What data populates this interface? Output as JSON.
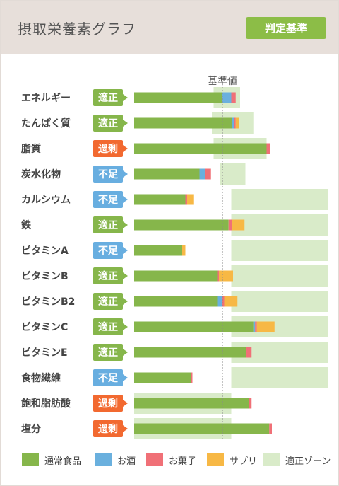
{
  "header": {
    "title": "摂取栄養素グラフ",
    "judge_button": "判定基準"
  },
  "chart_data": {
    "type": "bar",
    "reference_label": "基準値",
    "reference_value": 100,
    "x_range": [
      0,
      220
    ],
    "legend": [
      "通常食品",
      "お酒",
      "お菓子",
      "サプリ",
      "適正ゾーン"
    ],
    "colors": {
      "normal": "#86b64b",
      "alcohol": "#6ab0de",
      "sweets": "#f07077",
      "supplement": "#f7b845",
      "zone": "#d9ebc9",
      "ok": "#86b64b",
      "short": "#68aee0",
      "excess": "#f26930"
    },
    "rows": [
      {
        "label": "エネルギー",
        "status": "適正",
        "status_type": "ok",
        "zone": [
          90,
          120
        ],
        "normal": 100,
        "alcohol": 10,
        "sweets": 5,
        "supplement": 0
      },
      {
        "label": "たんぱく質",
        "status": "適正",
        "status_type": "ok",
        "zone": [
          88,
          135
        ],
        "normal": 111,
        "alcohol": 2,
        "sweets": 2,
        "supplement": 4
      },
      {
        "label": "脂質",
        "status": "過剰",
        "status_type": "excess",
        "zone": [
          90,
          150
        ],
        "normal": 150,
        "alcohol": 0,
        "sweets": 4,
        "supplement": 0
      },
      {
        "label": "炭水化物",
        "status": "不足",
        "status_type": "short",
        "zone": [
          97,
          126
        ],
        "normal": 74,
        "alcohol": 6,
        "sweets": 7,
        "supplement": 0
      },
      {
        "label": "カルシウム",
        "status": "不足",
        "status_type": "short",
        "zone": [
          110,
          220
        ],
        "normal": 58,
        "alcohol": 0,
        "sweets": 2,
        "supplement": 7
      },
      {
        "label": "鉄",
        "status": "適正",
        "status_type": "ok",
        "zone": [
          110,
          220
        ],
        "normal": 107,
        "alcohol": 0,
        "sweets": 4,
        "supplement": 14
      },
      {
        "label": "ビタミンA",
        "status": "不足",
        "status_type": "short",
        "zone": [
          110,
          220
        ],
        "normal": 54,
        "alcohol": 0,
        "sweets": 0,
        "supplement": 4
      },
      {
        "label": "ビタミンB",
        "status": "適正",
        "status_type": "ok",
        "zone": [
          110,
          220
        ],
        "normal": 94,
        "alcohol": 0,
        "sweets": 2,
        "supplement": 16
      },
      {
        "label": "ビタミンB2",
        "status": "適正",
        "status_type": "ok",
        "zone": [
          110,
          220
        ],
        "normal": 94,
        "alcohol": 6,
        "sweets": 2,
        "supplement": 15
      },
      {
        "label": "ビタミンC",
        "status": "適正",
        "status_type": "ok",
        "zone": [
          110,
          220
        ],
        "normal": 135,
        "alcohol": 2,
        "sweets": 2,
        "supplement": 20
      },
      {
        "label": "ビタミンE",
        "status": "適正",
        "status_type": "ok",
        "zone": [
          110,
          220
        ],
        "normal": 127,
        "alcohol": 0,
        "sweets": 6,
        "supplement": 0
      },
      {
        "label": "食物繊維",
        "status": "不足",
        "status_type": "short",
        "zone": [
          110,
          220
        ],
        "normal": 64,
        "alcohol": 0,
        "sweets": 2,
        "supplement": 0
      },
      {
        "label": "飽和脂肪酸",
        "status": "過剰",
        "status_type": "excess",
        "zone": [
          0,
          110
        ],
        "normal": 130,
        "alcohol": 0,
        "sweets": 3,
        "supplement": 0
      },
      {
        "label": "塩分",
        "status": "過剰",
        "status_type": "excess",
        "zone": [
          0,
          110
        ],
        "normal": 153,
        "alcohol": 0,
        "sweets": 3,
        "supplement": 0
      }
    ]
  }
}
